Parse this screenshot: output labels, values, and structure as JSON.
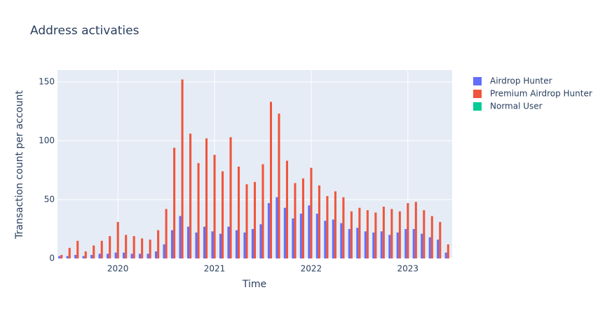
{
  "chart_data": {
    "type": "bar",
    "title": "Address activaties",
    "x_label": "Time",
    "y_label": "Transaction count per account",
    "x": [
      "2019-06",
      "2019-07",
      "2019-08",
      "2019-09",
      "2019-10",
      "2019-11",
      "2019-12",
      "2020-01",
      "2020-02",
      "2020-03",
      "2020-04",
      "2020-05",
      "2020-06",
      "2020-07",
      "2020-08",
      "2020-09",
      "2020-10",
      "2020-11",
      "2020-12",
      "2021-01",
      "2021-02",
      "2021-03",
      "2021-04",
      "2021-05",
      "2021-06",
      "2021-07",
      "2021-08",
      "2021-09",
      "2021-10",
      "2021-11",
      "2021-12",
      "2022-01",
      "2022-02",
      "2022-03",
      "2022-04",
      "2022-05",
      "2022-06",
      "2022-07",
      "2022-08",
      "2022-09",
      "2022-10",
      "2022-11",
      "2022-12",
      "2023-01",
      "2023-02",
      "2023-03",
      "2023-04",
      "2023-05",
      "2023-06"
    ],
    "series": [
      {
        "name": "Airdrop Hunter",
        "color": "#636efa",
        "values": [
          2,
          2,
          3,
          2,
          3,
          4,
          4,
          5,
          5,
          4,
          4,
          4,
          6,
          12,
          24,
          36,
          27,
          22,
          27,
          23,
          21,
          27,
          24,
          22,
          25,
          29,
          47,
          52,
          43,
          34,
          38,
          45,
          38,
          32,
          33,
          30,
          25,
          26,
          23,
          22,
          23,
          20,
          22,
          25,
          25,
          21,
          18,
          16,
          5
        ]
      },
      {
        "name": "Premium Airdrop Hunter",
        "color": "#ef553b",
        "values": [
          3,
          9,
          15,
          6,
          11,
          15,
          19,
          31,
          20,
          19,
          17,
          16,
          24,
          42,
          94,
          152,
          106,
          81,
          102,
          88,
          74,
          103,
          78,
          63,
          65,
          80,
          133,
          123,
          83,
          64,
          68,
          77,
          62,
          53,
          57,
          52,
          40,
          43,
          41,
          39,
          44,
          42,
          40,
          47,
          48,
          41,
          36,
          31,
          12
        ]
      },
      {
        "name": "Normal User",
        "color": "#00cc96",
        "values": [
          0,
          0,
          0,
          0,
          0,
          0,
          0,
          0,
          0,
          0,
          0,
          0,
          0,
          0,
          0,
          0,
          0,
          0,
          0,
          0,
          0,
          0,
          0,
          0,
          0,
          0,
          0,
          0,
          0,
          0,
          0,
          0,
          0,
          0,
          0,
          0,
          0,
          0,
          0,
          0,
          0,
          0,
          0,
          0,
          0,
          0,
          0,
          0,
          0
        ]
      }
    ],
    "xlim": [
      "2019-06",
      "2023-06"
    ],
    "xticks": [
      {
        "value": "2020-01",
        "label": "2020"
      },
      {
        "value": "2021-01",
        "label": "2021"
      },
      {
        "value": "2022-01",
        "label": "2022"
      },
      {
        "value": "2023-01",
        "label": "2023"
      }
    ],
    "ylim": [
      0,
      160
    ],
    "yticks": [
      0,
      50,
      100,
      150
    ],
    "grid": true,
    "legend": "right"
  }
}
